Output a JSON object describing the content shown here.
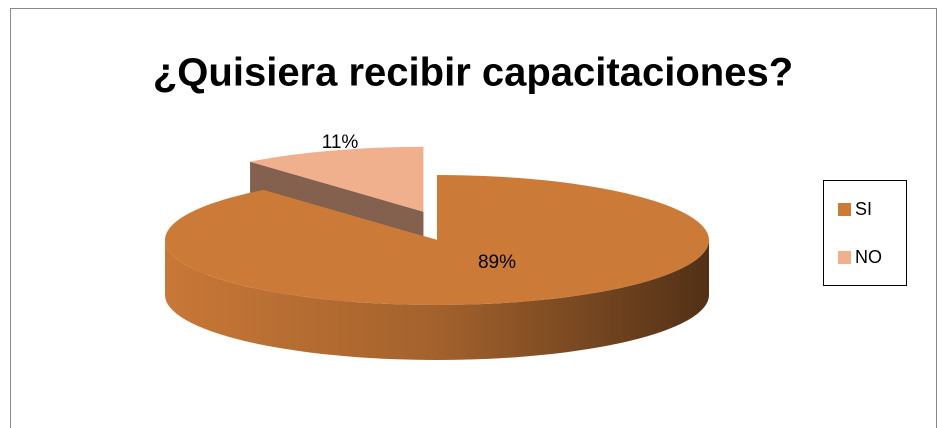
{
  "chart_data": {
    "type": "pie",
    "title": "¿Quisiera recibir capacitaciones?",
    "categories": [
      "SI",
      "NO"
    ],
    "values": [
      89,
      11
    ],
    "value_labels": [
      "89%",
      "11%"
    ],
    "colors": [
      "#cc7a38",
      "#f0b08e"
    ],
    "legend": "right",
    "explode": [
      false,
      true
    ],
    "three_d": true
  }
}
